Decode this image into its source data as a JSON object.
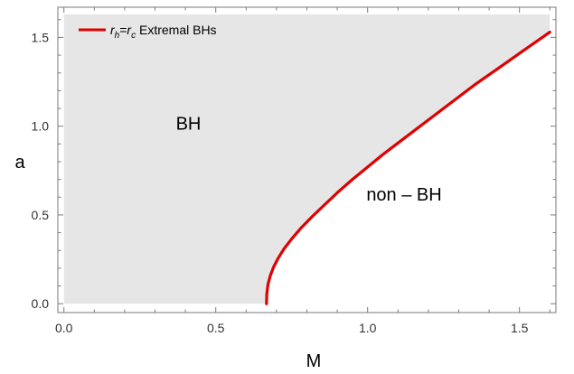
{
  "chart_data": {
    "type": "area",
    "xlabel": "M",
    "ylabel": "a",
    "xlim": [
      -0.02,
      1.62
    ],
    "ylim": [
      -0.05,
      1.67
    ],
    "x_ticks": [
      0.0,
      0.5,
      1.0,
      1.5
    ],
    "x_tick_labels": [
      "0.0",
      "0.5",
      "1.0",
      "1.5"
    ],
    "y_ticks": [
      0.0,
      0.5,
      1.0,
      1.5
    ],
    "y_tick_labels": [
      "0.0",
      "0.5",
      "1.0",
      "1.5"
    ],
    "grid": false,
    "legend": {
      "position": "top-left",
      "entries": [
        {
          "r_h": "r",
          "h_sub": "h",
          "eq": "=",
          "r_c": "r",
          "c_sub": "c",
          "rest": " Extremal BHs",
          "color": "#e00000"
        }
      ]
    },
    "series": [
      {
        "name": "r_h=r_c Extremal BHs",
        "color": "#e00000",
        "x": [
          0.667,
          0.668,
          0.672,
          0.68,
          0.69,
          0.705,
          0.725,
          0.75,
          0.78,
          0.82,
          0.86,
          0.9,
          0.95,
          1.0,
          1.05,
          1.1,
          1.15,
          1.2,
          1.25,
          1.3,
          1.35,
          1.4,
          1.45,
          1.5,
          1.55,
          1.6
        ],
        "y": [
          0.0,
          0.055,
          0.11,
          0.16,
          0.205,
          0.255,
          0.31,
          0.365,
          0.425,
          0.495,
          0.56,
          0.625,
          0.7,
          0.77,
          0.84,
          0.905,
          0.97,
          1.035,
          1.1,
          1.165,
          1.23,
          1.29,
          1.35,
          1.41,
          1.47,
          1.53
        ]
      }
    ],
    "shaded_region": {
      "label": "BH",
      "color": "#e6e6e6",
      "x_range": [
        0.0,
        1.6
      ],
      "y_range": [
        0.0,
        1.63
      ]
    },
    "annotations": [
      {
        "text": "BH",
        "x": 0.41,
        "y": 0.98
      },
      {
        "text": "non – BH",
        "x": 1.12,
        "y": 0.58
      }
    ]
  }
}
